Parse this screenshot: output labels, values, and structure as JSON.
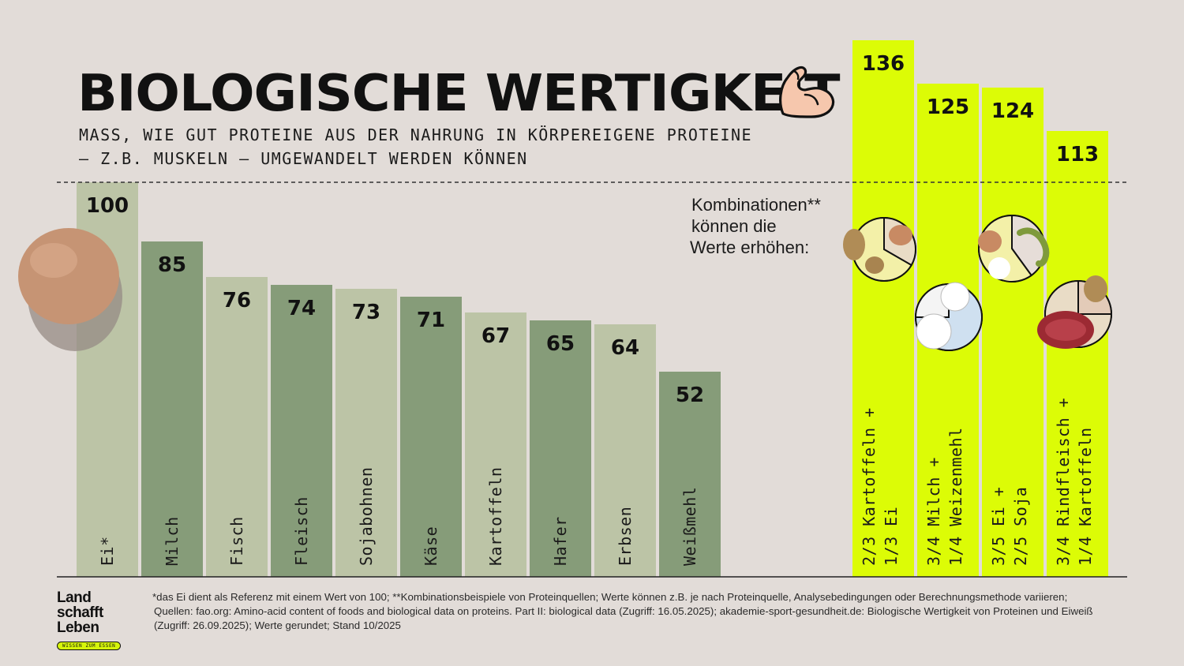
{
  "title": "BIOLOGISCHE WERTIGKEIT",
  "subtitle_lines": [
    "MASS, WIE GUT PROTEINE AUS DER NAHRUNG IN KÖRPEREIGENE PROTEINE",
    "– Z.B. MUSKELN – UMGEWANDELT WERDEN KÖNNEN"
  ],
  "combo_note_lines": [
    "Kombinationen**",
    "können die",
    "Werte erhöhen:"
  ],
  "logo": {
    "lines": [
      "Land",
      "schafft",
      "Leben"
    ],
    "tagline": "WISSEN ZUM ESSEN"
  },
  "footnote_lines": [
    "*das Ei dient als Referenz mit einem Wert von 100; **Kombinationsbeispiele von Proteinquellen; Werte können z.B. je nach Proteinquelle, Analysebedingungen oder Berechnungsmethode variieren;",
    "Quellen: fao.org: Amino-acid content of foods and biological data on proteins. Part II: biological data (Zugriff: 16.05.2025); akademie-sport-gesundheit.de: Biologische Wertigkeit von Proteinen und Eiweiß",
    "(Zugriff: 26.09.2025); Werte gerundet; Stand 10/2025"
  ],
  "icons": {
    "muscle": "flexed-biceps-icon",
    "egg": "egg-image",
    "combo_images": [
      "potato-egg-pie-icon",
      "milk-flour-pie-icon",
      "egg-soy-pie-icon",
      "beef-potato-pie-icon"
    ]
  },
  "colors": {
    "background": "#e2dcd8",
    "bar_light": "#bcc4a6",
    "bar_dark": "#869c79",
    "bar_combo": "#dcfc06"
  },
  "chart_data": {
    "type": "bar",
    "categories": [
      "Ei*",
      "Milch",
      "Fisch",
      "Fleisch",
      "Sojabohnen",
      "Käse",
      "Kartoffeln",
      "Hafer",
      "Erbsen",
      "Weißmehl"
    ],
    "values": [
      100,
      85,
      76,
      74,
      73,
      71,
      67,
      65,
      64,
      52
    ],
    "reference_line": 100,
    "combinations": [
      {
        "label_lines": [
          "2/3 Kartoffeln +",
          "1/3 Ei"
        ],
        "value": 136
      },
      {
        "label_lines": [
          "3/4 Milch +",
          "1/4 Weizenmehl"
        ],
        "value": 125
      },
      {
        "label_lines": [
          "3/5 Ei +",
          "2/5 Soja"
        ],
        "value": 124
      },
      {
        "label_lines": [
          "3/4 Rindfleisch +",
          "1/4 Kartoffeln"
        ],
        "value": 113
      }
    ],
    "title": "BIOLOGISCHE WERTIGKEIT",
    "xlabel": "",
    "ylabel": "",
    "ylim": [
      0,
      136
    ]
  }
}
